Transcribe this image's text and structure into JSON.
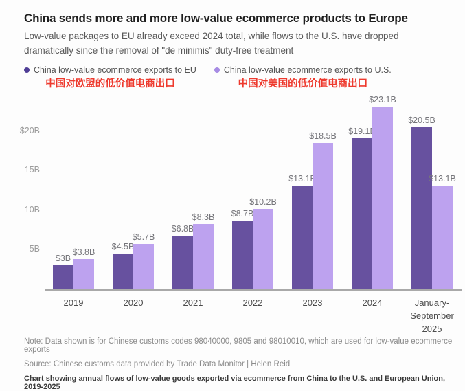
{
  "header": {
    "title": "China sends more and more low-value ecommerce products to Europe",
    "subtitle": "Low-value packages to EU already exceed 2024 total, while flows to the U.S. have dropped dramatically since the removal of \"de minimis\" duty-free treatment"
  },
  "legend": {
    "eu": {
      "label": "China low-value ecommerce exports to EU",
      "label_zh": "中国对欧盟的低价值电商出口",
      "dot_color": "#4f3e96"
    },
    "us": {
      "label": "China low-value ecommerce exports to U.S.",
      "label_zh": "中国对美国的低价值电商出口",
      "dot_color": "#a78ce4"
    }
  },
  "chart_data": {
    "type": "bar",
    "categories": [
      "2019",
      "2020",
      "2021",
      "2022",
      "2023",
      "2024",
      "January-September 2025"
    ],
    "series": [
      {
        "name": "China low-value ecommerce exports to EU",
        "color": "#67519f",
        "values": [
          3,
          4.5,
          6.8,
          8.7,
          13.1,
          19.1,
          20.5
        ],
        "labels": [
          "$3B",
          "$4.5B",
          "$6.8B",
          "$8.7B",
          "$13.1B",
          "$19.1B",
          "$20.5B"
        ]
      },
      {
        "name": "China low-value ecommerce exports to U.S.",
        "color": "#bda2ef",
        "values": [
          3.8,
          5.7,
          8.3,
          10.2,
          18.5,
          23.1,
          13.1
        ],
        "labels": [
          "$3.8B",
          "$5.7B",
          "$8.3B",
          "$10.2B",
          "$18.5B",
          "$23.1B",
          "$13.1B"
        ]
      }
    ],
    "y_ticks": [
      {
        "value": 5,
        "label": "5B"
      },
      {
        "value": 10,
        "label": "10B"
      },
      {
        "value": 15,
        "label": "15B"
      },
      {
        "value": 20,
        "label": "$20B"
      }
    ],
    "ylim": [
      0,
      24
    ],
    "grid": true,
    "legend_position": "top",
    "title": "China sends more and more low-value ecommerce products to Europe",
    "xlabel": "",
    "ylabel": ""
  },
  "notes": {
    "note": "Note: Data shown is for Chinese customs codes 98040000, 9805 and 98010010, which are used for low-value ecommerce exports",
    "source": "Source: Chinese customs data provided by Trade Data Monitor | Helen Reid",
    "caption": "Chart showing annual flows of low-value goods exported via ecommerce from China to the U.S. and European Union, 2019-2025"
  }
}
